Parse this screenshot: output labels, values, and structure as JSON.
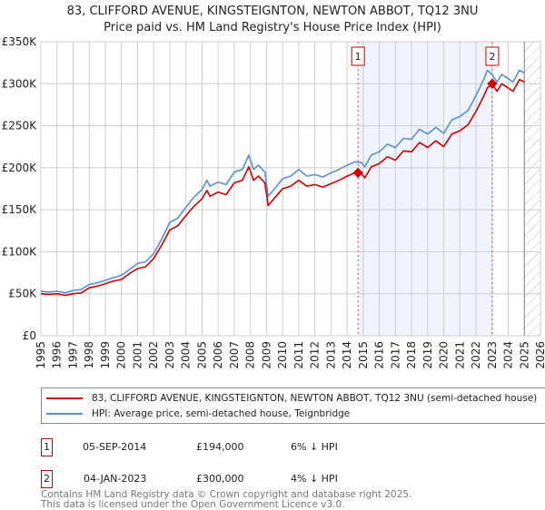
{
  "title": "83, CLIFFORD AVENUE, KINGSTEIGNTON, NEWTON ABBOT, TQ12 3NU",
  "subtitle": "Price paid vs. HM Land Registry's House Price Index (HPI)",
  "colors": {
    "property": "#cc0000",
    "hpi": "#5b8fd0",
    "shade": "#eef3fc"
  },
  "chart_data": {
    "type": "line",
    "title": "83, CLIFFORD AVENUE, KINGSTEIGNTON, NEWTON ABBOT, TQ12 3NU",
    "xlim": [
      1995,
      2026
    ],
    "ylim": [
      0,
      350000
    ],
    "grid": true,
    "x_ticks": [
      "1995",
      "1996",
      "1997",
      "1998",
      "1999",
      "2000",
      "2001",
      "2002",
      "2003",
      "2004",
      "2005",
      "2006",
      "2007",
      "2008",
      "2009",
      "2010",
      "2011",
      "2012",
      "2013",
      "2014",
      "2015",
      "2016",
      "2017",
      "2018",
      "2019",
      "2020",
      "2021",
      "2022",
      "2023",
      "2024",
      "2025",
      "2026"
    ],
    "y_ticks": [
      {
        "value": 0,
        "label": "£0"
      },
      {
        "value": 50000,
        "label": "£50K"
      },
      {
        "value": 100000,
        "label": "£100K"
      },
      {
        "value": 150000,
        "label": "£150K"
      },
      {
        "value": 200000,
        "label": "£200K"
      },
      {
        "value": 250000,
        "label": "£250K"
      },
      {
        "value": 300000,
        "label": "£300K"
      },
      {
        "value": 350000,
        "label": "£350K"
      }
    ],
    "x": [
      1995,
      1995.5,
      1996,
      1996.5,
      1997,
      1997.5,
      1998,
      1998.5,
      1999,
      1999.5,
      2000,
      2000.5,
      2001,
      2001.5,
      2002,
      2002.5,
      2003,
      2003.5,
      2004,
      2004.5,
      2005,
      2005.3,
      2005.5,
      2006,
      2006.5,
      2007,
      2007.5,
      2007.9,
      2008.2,
      2008.5,
      2008.9,
      2009.1,
      2009.5,
      2010,
      2010.5,
      2011,
      2011.5,
      2012,
      2012.5,
      2013,
      2013.5,
      2014,
      2014.5,
      2014.9,
      2015.1,
      2015.5,
      2016,
      2016.5,
      2017,
      2017.5,
      2018,
      2018.5,
      2019,
      2019.5,
      2020,
      2020.5,
      2021,
      2021.5,
      2022,
      2022.5,
      2022.7,
      2023,
      2023.3,
      2023.6,
      2024,
      2024.3,
      2024.7,
      2025
    ],
    "series": [
      {
        "name": "83, CLIFFORD AVENUE, KINGSTEIGNTON, NEWTON ABBOT, TQ12 3NU (semi-detached house)",
        "color": "#cc0000",
        "values": [
          50000,
          49000,
          50000,
          48000,
          50000,
          51000,
          57000,
          59000,
          62000,
          65000,
          67000,
          74000,
          80000,
          82000,
          92000,
          108000,
          126000,
          131000,
          143000,
          154000,
          163000,
          173000,
          166000,
          171000,
          168000,
          182000,
          185000,
          201000,
          185000,
          190000,
          182000,
          155000,
          164000,
          175000,
          178000,
          185000,
          178000,
          180000,
          177000,
          181000,
          185000,
          190000,
          194000,
          193000,
          188000,
          201000,
          205000,
          213000,
          209000,
          220000,
          219000,
          230000,
          224000,
          232000,
          225000,
          240000,
          244000,
          251000,
          267000,
          286000,
          295000,
          300000,
          291000,
          300000,
          295000,
          291000,
          305000,
          302000
        ]
      },
      {
        "name": "HPI: Average price, semi-detached house, Teignbridge",
        "color": "#5b8fd0",
        "values": [
          53000,
          52000,
          53000,
          51000,
          54000,
          55000,
          61000,
          63000,
          66000,
          69000,
          72000,
          79000,
          86000,
          88000,
          98000,
          115000,
          135000,
          140000,
          153000,
          165000,
          174000,
          185000,
          178000,
          183000,
          180000,
          195000,
          198000,
          215000,
          198000,
          203000,
          195000,
          166000,
          175000,
          187000,
          190000,
          198000,
          190000,
          192000,
          189000,
          194000,
          198000,
          203000,
          207000,
          206000,
          201000,
          215000,
          219000,
          228000,
          224000,
          235000,
          234000,
          246000,
          240000,
          248000,
          241000,
          257000,
          261000,
          268000,
          286000,
          306000,
          316000,
          311000,
          302000,
          311000,
          306000,
          302000,
          316000,
          313000
        ]
      }
    ],
    "sales": [
      {
        "label": "1",
        "x": 2014.68,
        "value": 194000
      },
      {
        "label": "2",
        "x": 2023.01,
        "value": 300000
      }
    ],
    "forecast_hatch_from": 2025.0,
    "legend_position": "below"
  },
  "legend": {
    "property": "83, CLIFFORD AVENUE, KINGSTEIGNTON, NEWTON ABBOT, TQ12 3NU (semi-detached house)",
    "hpi": "HPI: Average price, semi-detached house, Teignbridge"
  },
  "transactions": [
    {
      "num": "1",
      "date": "05-SEP-2014",
      "price": "£194,000",
      "delta": "6% ↓ HPI"
    },
    {
      "num": "2",
      "date": "04-JAN-2023",
      "price": "£300,000",
      "delta": "4% ↓ HPI"
    }
  ],
  "footer": {
    "line1": "Contains HM Land Registry data © Crown copyright and database right 2025.",
    "line2": "This data is licensed under the Open Government Licence v3.0."
  }
}
